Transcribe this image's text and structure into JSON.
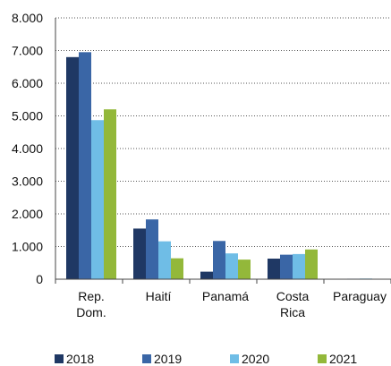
{
  "chart_data": {
    "type": "bar",
    "categories": [
      "Rep.\nDom.",
      "Haití",
      "Panamá",
      "Costa\nRica",
      "Paraguay"
    ],
    "series": [
      {
        "name": "2018",
        "color": "#1f3864",
        "values": [
          6800,
          1550,
          230,
          630,
          10
        ]
      },
      {
        "name": "2019",
        "color": "#3a66a6",
        "values": [
          6950,
          1830,
          1170,
          750,
          15
        ]
      },
      {
        "name": "2020",
        "color": "#6fbde6",
        "values": [
          4870,
          1160,
          790,
          770,
          20
        ]
      },
      {
        "name": "2021",
        "color": "#93b83a",
        "values": [
          5200,
          640,
          600,
          910,
          10
        ]
      }
    ],
    "y_ticks": [
      "0",
      "1.000",
      "2.000",
      "3.000",
      "4.000",
      "5.000",
      "6.000",
      "7.000",
      "8.000"
    ],
    "ylim": [
      0,
      8000
    ],
    "grid": true,
    "grid_style": "dotted",
    "legend_position": "bottom",
    "title": "",
    "xlabel": "",
    "ylabel": ""
  }
}
